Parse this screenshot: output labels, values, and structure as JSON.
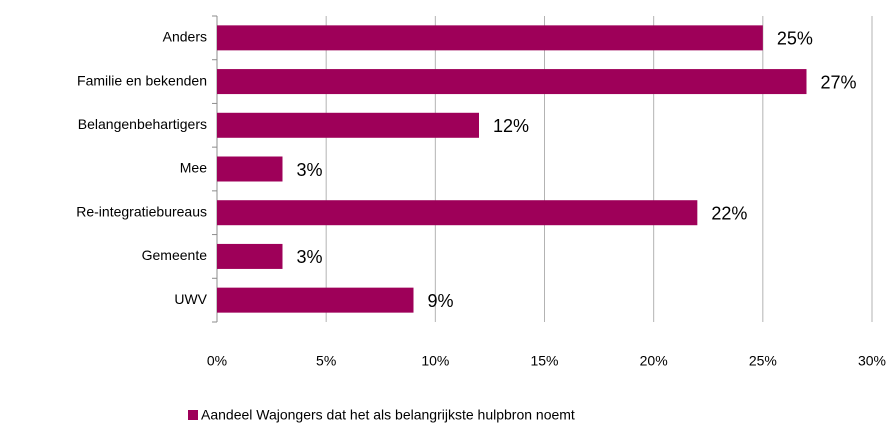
{
  "chart_data": {
    "type": "bar",
    "orientation": "horizontal",
    "categories": [
      "Anders",
      "Familie en bekenden",
      "Belangenbehartigers",
      "Mee",
      "Re-integratiebureaus",
      "Gemeente",
      "UWV"
    ],
    "series": [
      {
        "name": "Aandeel Wajongers dat het als belangrijkste hulpbron noemt",
        "color": "#9e0059",
        "values": [
          25,
          27,
          12,
          3,
          22,
          3,
          9
        ],
        "value_labels": [
          "25%",
          "27%",
          "12%",
          "3%",
          "22%",
          "3%",
          "9%"
        ]
      }
    ],
    "xlim": [
      0,
      30
    ],
    "xticks": [
      {
        "value": 0,
        "label": "0%"
      },
      {
        "value": 5,
        "label": "5%"
      },
      {
        "value": 10,
        "label": "10%"
      },
      {
        "value": 15,
        "label": "15%"
      },
      {
        "value": 20,
        "label": "20%"
      },
      {
        "value": 25,
        "label": "25%"
      },
      {
        "value": 30,
        "label": "30%"
      }
    ],
    "grid": true,
    "legend": "bottom"
  }
}
